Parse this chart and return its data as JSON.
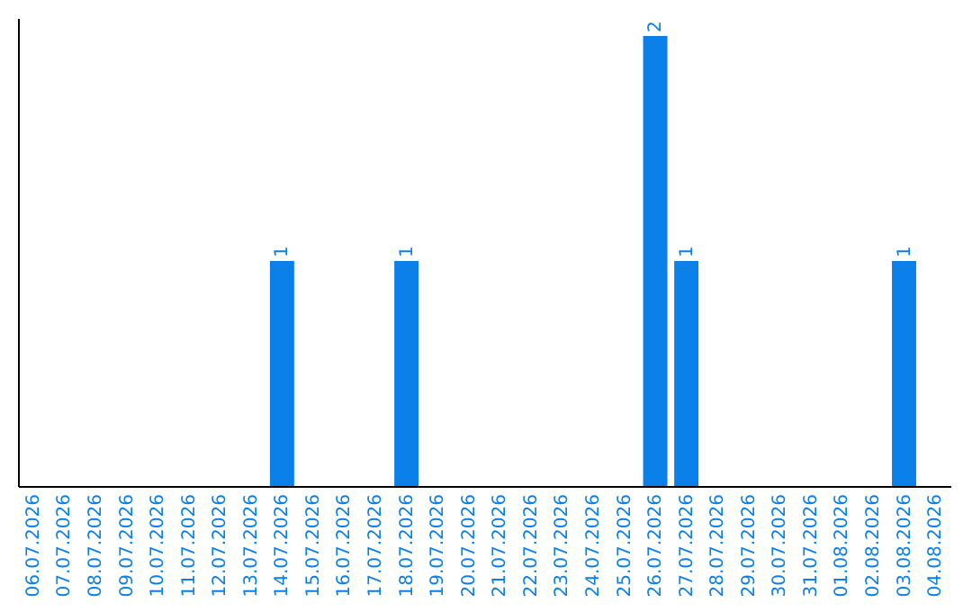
{
  "chart_data": {
    "type": "bar",
    "categories": [
      "06.07.2026",
      "07.07.2026",
      "08.07.2026",
      "09.07.2026",
      "10.07.2026",
      "11.07.2026",
      "12.07.2026",
      "13.07.2026",
      "14.07.2026",
      "15.07.2026",
      "16.07.2026",
      "17.07.2026",
      "18.07.2026",
      "19.07.2026",
      "20.07.2026",
      "21.07.2026",
      "22.07.2026",
      "23.07.2026",
      "24.07.2026",
      "25.07.2026",
      "26.07.2026",
      "27.07.2026",
      "28.07.2026",
      "29.07.2026",
      "30.07.2026",
      "31.07.2026",
      "01.08.2026",
      "02.08.2026",
      "03.08.2026",
      "04.08.2026"
    ],
    "values": [
      0,
      0,
      0,
      0,
      0,
      0,
      0,
      0,
      1,
      0,
      0,
      0,
      1,
      0,
      0,
      0,
      0,
      0,
      0,
      0,
      2,
      1,
      0,
      0,
      0,
      0,
      0,
      0,
      1,
      0
    ],
    "value_labels": [
      null,
      null,
      null,
      null,
      null,
      null,
      null,
      null,
      "1",
      null,
      null,
      null,
      "1",
      null,
      null,
      null,
      null,
      null,
      null,
      null,
      "2",
      "1",
      null,
      null,
      null,
      null,
      null,
      null,
      "1",
      null
    ],
    "color": "#0a80e8"
  }
}
